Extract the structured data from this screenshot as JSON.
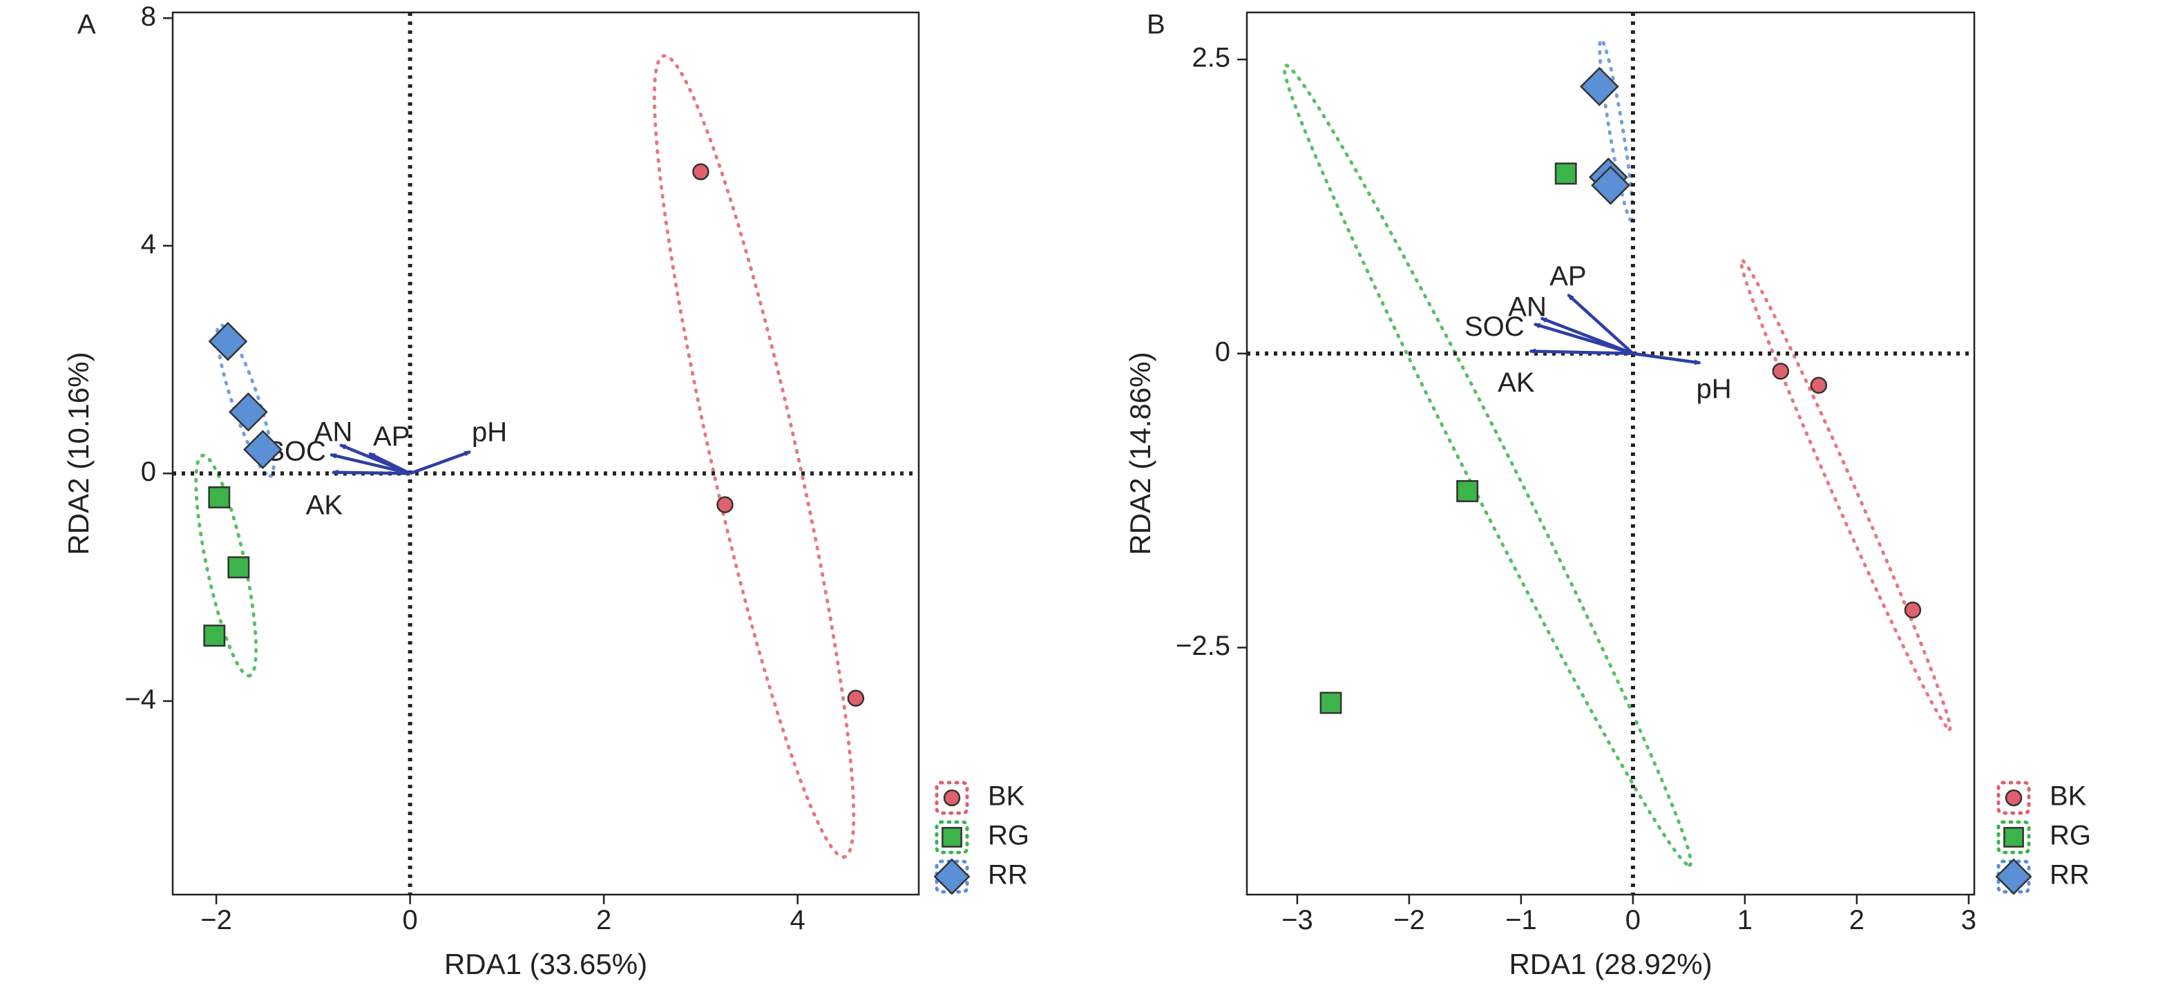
{
  "colors": {
    "BK": "#e0606e",
    "RG": "#3cb44a",
    "RR": "#5b8fd6",
    "vector": "#2e3fa3",
    "zero_line": "#222222",
    "axis": "#222222"
  },
  "chart_data": [
    {
      "type": "scatter",
      "panel": "A",
      "xlabel": "RDA1 (33.65%)",
      "ylabel": "RDA2 (10.16%)",
      "xlim": [
        -2.45,
        5.25
      ],
      "ylim": [
        -7.4,
        8.1
      ],
      "xticks": [
        {
          "value": -2,
          "label": "−2"
        },
        {
          "value": 0,
          "label": "0"
        },
        {
          "value": 2,
          "label": "2"
        },
        {
          "value": 4,
          "label": "4"
        }
      ],
      "yticks": [
        {
          "value": -4,
          "label": "−4"
        },
        {
          "value": 0,
          "label": "0"
        },
        {
          "value": 4,
          "label": "4"
        },
        {
          "value": 8,
          "label": "8"
        }
      ],
      "zero_lines": true,
      "series": [
        {
          "name": "BK",
          "marker": "circle",
          "points": [
            [
              3.0,
              5.3
            ],
            [
              3.25,
              -0.55
            ],
            [
              4.6,
              -3.95
            ]
          ],
          "ellipse": {
            "cx": 3.55,
            "cy": 0.3,
            "rx": 7.1,
            "ry": 0.45,
            "angle_deg": -82.5
          }
        },
        {
          "name": "RG",
          "marker": "square",
          "points": [
            [
              -1.97,
              -0.42
            ],
            [
              -1.77,
              -1.65
            ],
            [
              -2.02,
              -2.85
            ]
          ],
          "ellipse": {
            "cx": -1.9,
            "cy": -1.62,
            "rx": 1.95,
            "ry": 0.2,
            "angle_deg": -83.0
          }
        },
        {
          "name": "RR",
          "marker": "diamond",
          "points": [
            [
              -1.88,
              2.32
            ],
            [
              -1.67,
              1.08
            ],
            [
              -1.52,
              0.42
            ]
          ],
          "ellipse": {
            "cx": -1.7,
            "cy": 1.28,
            "rx": 1.35,
            "ry": 0.14,
            "angle_deg": -79.0
          }
        }
      ],
      "vectors": [
        {
          "name": "AN",
          "x": -0.72,
          "y": 0.5
        },
        {
          "name": "SOC",
          "x": -0.82,
          "y": 0.33
        },
        {
          "name": "AP",
          "x": -0.42,
          "y": 0.35
        },
        {
          "name": "AK",
          "x": -0.8,
          "y": 0.02
        },
        {
          "name": "pH",
          "x": 0.62,
          "y": 0.38
        }
      ],
      "legend": {
        "position": "bottom-right",
        "entries": [
          "BK",
          "RG",
          "RR"
        ]
      }
    },
    {
      "type": "scatter",
      "panel": "B",
      "xlabel": "RDA1 (28.92%)",
      "ylabel": "RDA2 (14.86%)",
      "xlim": [
        -3.45,
        3.05
      ],
      "ylim": [
        -4.6,
        2.9
      ],
      "xticks": [
        {
          "value": -3,
          "label": "−3"
        },
        {
          "value": -2,
          "label": "−2"
        },
        {
          "value": -1,
          "label": "−1"
        },
        {
          "value": 0,
          "label": "0"
        },
        {
          "value": 1,
          "label": "1"
        },
        {
          "value": 2,
          "label": "2"
        },
        {
          "value": 3,
          "label": "3"
        }
      ],
      "yticks": [
        {
          "value": -2.5,
          "label": "−2.5"
        },
        {
          "value": 0,
          "label": "0"
        },
        {
          "value": 2.5,
          "label": "2.5"
        }
      ],
      "zero_lines": true,
      "series": [
        {
          "name": "BK",
          "marker": "circle",
          "points": [
            [
              1.32,
              -0.15
            ],
            [
              1.66,
              -0.27
            ],
            [
              2.5,
              -2.18
            ]
          ],
          "ellipse": {
            "cx": 1.9,
            "cy": -1.2,
            "rx": 2.2,
            "ry": 0.1,
            "angle_deg": -65.0
          }
        },
        {
          "name": "RG",
          "marker": "square",
          "points": [
            [
              -0.6,
              1.53
            ],
            [
              -1.48,
              -1.17
            ],
            [
              -2.7,
              -2.97
            ]
          ],
          "ellipse": {
            "cx": -1.3,
            "cy": -0.95,
            "rx": 3.85,
            "ry": 0.2,
            "angle_deg": -62.0
          }
        },
        {
          "name": "RR",
          "marker": "diamond",
          "points": [
            [
              -0.3,
              2.27
            ],
            [
              -0.22,
              1.5
            ],
            [
              -0.2,
              1.43
            ]
          ],
          "ellipse": {
            "cx": -0.15,
            "cy": 1.9,
            "rx": 0.78,
            "ry": 0.06,
            "angle_deg": -80.0
          }
        }
      ],
      "vectors": [
        {
          "name": "AP",
          "x": -0.58,
          "y": 0.5
        },
        {
          "name": "AN",
          "x": -0.82,
          "y": 0.3
        },
        {
          "name": "SOC",
          "x": -0.88,
          "y": 0.25
        },
        {
          "name": "AK",
          "x": -0.92,
          "y": 0.02
        },
        {
          "name": "pH",
          "x": 0.6,
          "y": -0.08
        }
      ],
      "legend": {
        "position": "bottom-right",
        "entries": [
          "BK",
          "RG",
          "RR"
        ]
      }
    }
  ]
}
